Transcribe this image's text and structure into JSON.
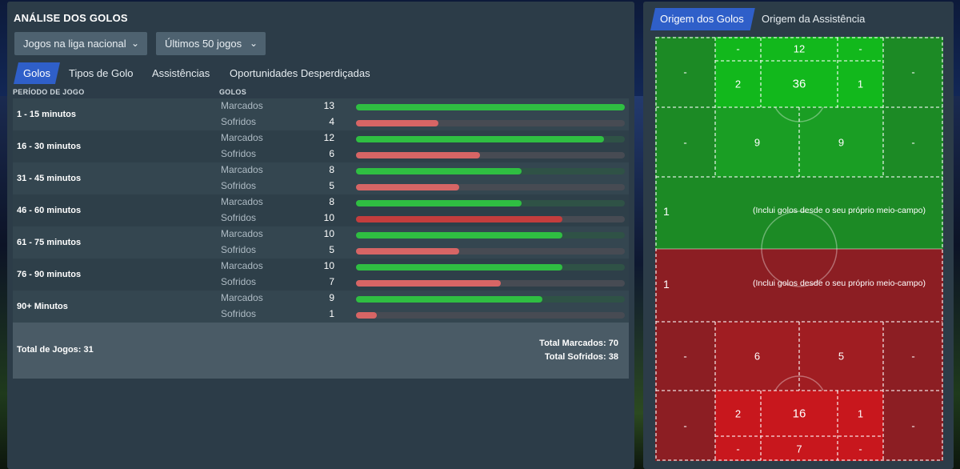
{
  "left_panel": {
    "title": "ANÁLISE DOS GOLOS",
    "filters": [
      {
        "label": "Jogos na liga nacional"
      },
      {
        "label": "Últimos 50 jogos"
      }
    ],
    "tabs": [
      {
        "label": "Golos",
        "active": true
      },
      {
        "label": "Tipos de Golo"
      },
      {
        "label": "Assistências"
      },
      {
        "label": "Oportunidades Desperdiçadas"
      }
    ],
    "column_headers": {
      "period": "PERÍODO DE JOGO",
      "goals": "GOLOS"
    },
    "scale_max": 13,
    "rows": [
      {
        "period": "1 - 15 minutos",
        "scored_label": "Marcados",
        "scored": 13,
        "conceded_label": "Sofridos",
        "conceded": 4
      },
      {
        "period": "16 - 30 minutos",
        "scored_label": "Marcados",
        "scored": 12,
        "conceded_label": "Sofridos",
        "conceded": 6
      },
      {
        "period": "31 - 45 minutos",
        "scored_label": "Marcados",
        "scored": 8,
        "conceded_label": "Sofridos",
        "conceded": 5
      },
      {
        "period": "46 - 60 minutos",
        "scored_label": "Marcados",
        "scored": 8,
        "conceded_label": "Sofridos",
        "conceded": 10
      },
      {
        "period": "61 - 75 minutos",
        "scored_label": "Marcados",
        "scored": 10,
        "conceded_label": "Sofridos",
        "conceded": 5
      },
      {
        "period": "76 - 90 minutos",
        "scored_label": "Marcados",
        "scored": 10,
        "conceded_label": "Sofridos",
        "conceded": 7
      },
      {
        "period": "90+ Minutos",
        "scored_label": "Marcados",
        "scored": 9,
        "conceded_label": "Sofridos",
        "conceded": 1
      }
    ],
    "totals": {
      "games": "Total de Jogos: 31",
      "scored": "Total Marcados: 70",
      "conceded": "Total Sofridos: 38"
    }
  },
  "right_panel": {
    "tabs": [
      {
        "label": "Origem dos Golos",
        "active": true
      },
      {
        "label": "Origem da Assistência"
      }
    ],
    "pitch": {
      "attack": {
        "six_yard_left": "-",
        "six_yard_center": "12",
        "six_yard_right": "-",
        "box_left": "2",
        "box_center": "36",
        "box_right": "1",
        "wing_left": "-",
        "wing_right": "-",
        "edge_wing_left": "-",
        "edge_left": "9",
        "edge_right": "9",
        "edge_wing_right": "-",
        "own_half_value": "1",
        "own_half_note": "(Inclui golos desde o seu próprio meio-campo)"
      },
      "defence": {
        "own_half_value": "1",
        "own_half_note": "(Inclui golos desde o seu próprio meio-campo)",
        "edge_wing_left": "-",
        "edge_left": "6",
        "edge_right": "5",
        "edge_wing_right": "-",
        "wing_left": "-",
        "wing_right": "-",
        "box_left": "2",
        "box_center": "16",
        "box_right": "1",
        "six_yard_left": "-",
        "six_yard_center": "7",
        "six_yard_right": "-"
      },
      "colors": {
        "attack_light": "#12b81c",
        "attack_mid": "#1a9e24",
        "attack_dark": "#1c8a25",
        "defence_light": "#c8171d",
        "defence_mid": "#a01d22",
        "defence_dark": "#8c1e23"
      }
    }
  }
}
